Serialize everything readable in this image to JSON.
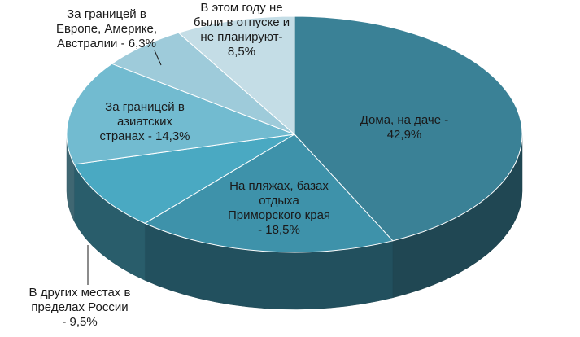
{
  "chart_data": {
    "type": "pie",
    "style": "3d",
    "slices": [
      {
        "name": "Дома, на даче",
        "value": 42.9,
        "color": "#3a8196",
        "label": [
          "Дома,  на даче -",
          "42,9%"
        ]
      },
      {
        "name": "На пляжах, базах отдыха Приморского края",
        "value": 18.5,
        "color": "#3e92aa",
        "label": [
          "На пляжах, базах",
          "отдыха",
          "Приморского края",
          "- 18,5%"
        ]
      },
      {
        "name": "В других местах в пределах России",
        "value": 9.5,
        "color": "#4aa9c2",
        "label": [
          "В других местах в",
          "пределах России",
          "- 9,5%"
        ]
      },
      {
        "name": "За границей в азиатских странах",
        "value": 14.3,
        "color": "#72bbd0",
        "label": [
          "За границей в",
          "азиатских",
          "странах - 14,3%"
        ]
      },
      {
        "name": "За границей в Европе, Америке, Австралии",
        "value": 6.3,
        "color": "#9ecbda",
        "label": [
          "За границей в",
          "Европе, Америке,",
          "Австралии - 6,3%"
        ]
      },
      {
        "name": "В этом году не были в отпуске и не планируют",
        "value": 8.5,
        "color": "#c4dde6",
        "label": [
          "В этом году не",
          "были в отпуске и",
          "не планируют-",
          "8,5%"
        ]
      }
    ]
  }
}
